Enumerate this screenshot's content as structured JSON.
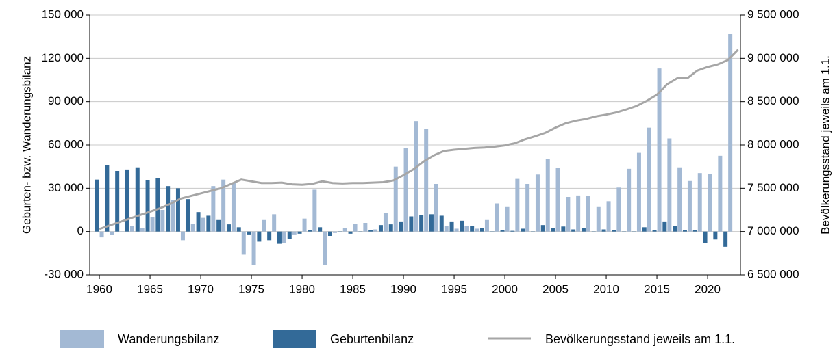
{
  "chart_data": {
    "type": "bar-line",
    "y_label": "Geburten- bzw. Wanderungsbilanz",
    "y2_label": "Bevölkerungsstand jeweils am 1.1.",
    "x": [
      1960,
      1961,
      1962,
      1963,
      1964,
      1965,
      1966,
      1967,
      1968,
      1969,
      1970,
      1971,
      1972,
      1973,
      1974,
      1975,
      1976,
      1977,
      1978,
      1979,
      1980,
      1981,
      1982,
      1983,
      1984,
      1985,
      1986,
      1987,
      1988,
      1989,
      1990,
      1991,
      1992,
      1993,
      1994,
      1995,
      1996,
      1997,
      1998,
      1999,
      2000,
      2001,
      2002,
      2003,
      2004,
      2005,
      2006,
      2007,
      2008,
      2009,
      2010,
      2011,
      2012,
      2013,
      2014,
      2015,
      2016,
      2017,
      2018,
      2019,
      2020,
      2021,
      2022,
      2023
    ],
    "xlim": [
      1959.05,
      2023.24
    ],
    "xticks": [
      1960,
      1965,
      1970,
      1975,
      1980,
      1985,
      1990,
      1995,
      2000,
      2005,
      2010,
      2015,
      2020
    ],
    "ylim": [
      -30000,
      150000
    ],
    "yticks": [
      {
        "value": -30000,
        "label": "-30 000"
      },
      0,
      {
        "value": 30000,
        "label": "30 000"
      },
      {
        "value": 60000,
        "label": "60 000"
      },
      {
        "value": 90000,
        "label": "90 000"
      },
      {
        "value": 120000,
        "label": "120 000"
      },
      {
        "value": 150000,
        "label": "150 000"
      }
    ],
    "y2lim": [
      6500000,
      9500000
    ],
    "y2ticks": [
      {
        "value": 6500000,
        "label": "6 500 000"
      },
      {
        "value": 7000000,
        "label": "7 000 000"
      },
      {
        "value": 7500000,
        "label": "7 500 000"
      },
      {
        "value": 8000000,
        "label": "8 000 000"
      },
      {
        "value": 8500000,
        "label": "8 500 000"
      },
      {
        "value": 9000000,
        "label": "9 000 000"
      },
      {
        "value": 9500000,
        "label": "9 500 000"
      }
    ],
    "grid": true,
    "legend": "bottom",
    "series": [
      {
        "name": "Wanderungsbilanz",
        "type": "bar",
        "color": "#a3b9d4",
        "values": [
          -4000,
          -2500,
          0,
          4000,
          2500,
          10000,
          15000,
          22000,
          -6000,
          5500,
          9500,
          31500,
          36000,
          34000,
          -16000,
          -23000,
          8000,
          12000,
          -8000,
          -2000,
          9000,
          29000,
          -23000,
          -1000,
          2500,
          5500,
          6000,
          1500,
          13000,
          45000,
          58000,
          76500,
          71000,
          33000,
          4000,
          2000,
          4000,
          2000,
          8000,
          19500,
          17000,
          36500,
          33000,
          39500,
          50500,
          44000,
          24000,
          25000,
          24500,
          17000,
          21000,
          30500,
          43500,
          54500,
          72000,
          113000,
          64500,
          44500,
          35000,
          40500,
          40000,
          52500,
          137000,
          null
        ]
      },
      {
        "name": "Geburtenbilanz",
        "type": "bar",
        "color": "#336a98",
        "values": [
          36000,
          46000,
          42000,
          43000,
          44500,
          35500,
          37000,
          31500,
          30000,
          22500,
          13500,
          11000,
          8000,
          5000,
          3000,
          -2000,
          -7000,
          -6000,
          -8500,
          -5000,
          -1500,
          1000,
          3000,
          -3000,
          0,
          -1500,
          0,
          1000,
          4500,
          5000,
          7000,
          10500,
          11500,
          12000,
          11000,
          7000,
          7500,
          4000,
          2500,
          0,
          1000,
          500,
          2000,
          0,
          4500,
          2500,
          3500,
          1500,
          2500,
          -500,
          1500,
          1000,
          -500,
          0,
          3000,
          1000,
          7000,
          4000,
          1000,
          1000,
          -8000,
          -5500,
          -10500,
          null
        ]
      },
      {
        "name": "Bevölkerungsstand jeweils am 1.1.",
        "type": "line",
        "axis": "y2",
        "color": "#a6a6a6",
        "values": [
          7030000,
          7070000,
          7110000,
          7150000,
          7190000,
          7230000,
          7270000,
          7320000,
          7380000,
          7410000,
          7440000,
          7470000,
          7500000,
          7550000,
          7600000,
          7580000,
          7560000,
          7560000,
          7565000,
          7545000,
          7540000,
          7550000,
          7580000,
          7560000,
          7555000,
          7560000,
          7560000,
          7565000,
          7570000,
          7590000,
          7650000,
          7720000,
          7810000,
          7880000,
          7930000,
          7945000,
          7955000,
          7965000,
          7970000,
          7980000,
          7995000,
          8020000,
          8065000,
          8100000,
          8140000,
          8200000,
          8250000,
          8280000,
          8300000,
          8330000,
          8350000,
          8375000,
          8410000,
          8450000,
          8510000,
          8580000,
          8700000,
          8770000,
          8770000,
          8860000,
          8900000,
          8930000,
          8980000,
          9100000
        ]
      }
    ]
  }
}
